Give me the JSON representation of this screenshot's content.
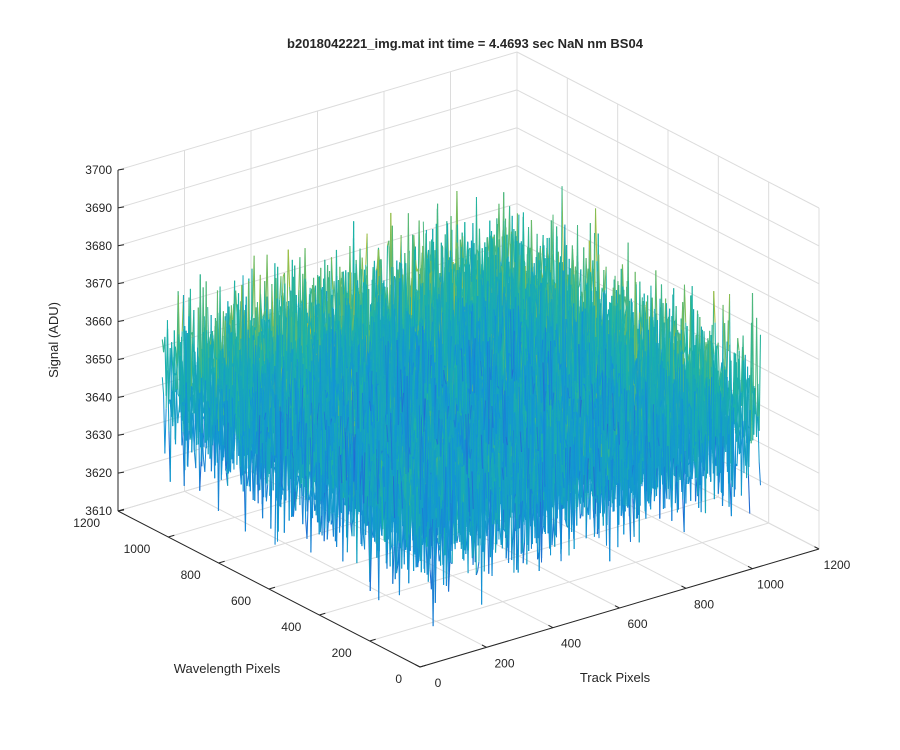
{
  "chart_data": {
    "type": "surface",
    "title": "b2018042221_img.mat int time = 4.4693 sec  NaN nm BS04",
    "xlabel": "Track Pixels",
    "ylabel": "Wavelength Pixels",
    "zlabel": "Signal (ADU)",
    "xlim": [
      0,
      1200
    ],
    "ylim": [
      0,
      1200
    ],
    "zlim": [
      3610,
      3700
    ],
    "x_ticks": [
      0,
      200,
      400,
      600,
      800,
      1000,
      1200
    ],
    "y_ticks": [
      0,
      200,
      400,
      600,
      800,
      1000,
      1200
    ],
    "z_ticks": [
      3610,
      3620,
      3630,
      3640,
      3650,
      3660,
      3670,
      3680,
      3690,
      3700
    ],
    "data_extent": {
      "x": [
        0,
        1024
      ],
      "y": [
        0,
        1024
      ]
    },
    "signal_mean": 3650,
    "signal_noise_range": [
      3615,
      3685
    ],
    "grid": true,
    "colormap": "parula",
    "colors": {
      "low": "#3a5bd9",
      "mid": "#1aa3c8",
      "high": "#e8b52a"
    }
  }
}
